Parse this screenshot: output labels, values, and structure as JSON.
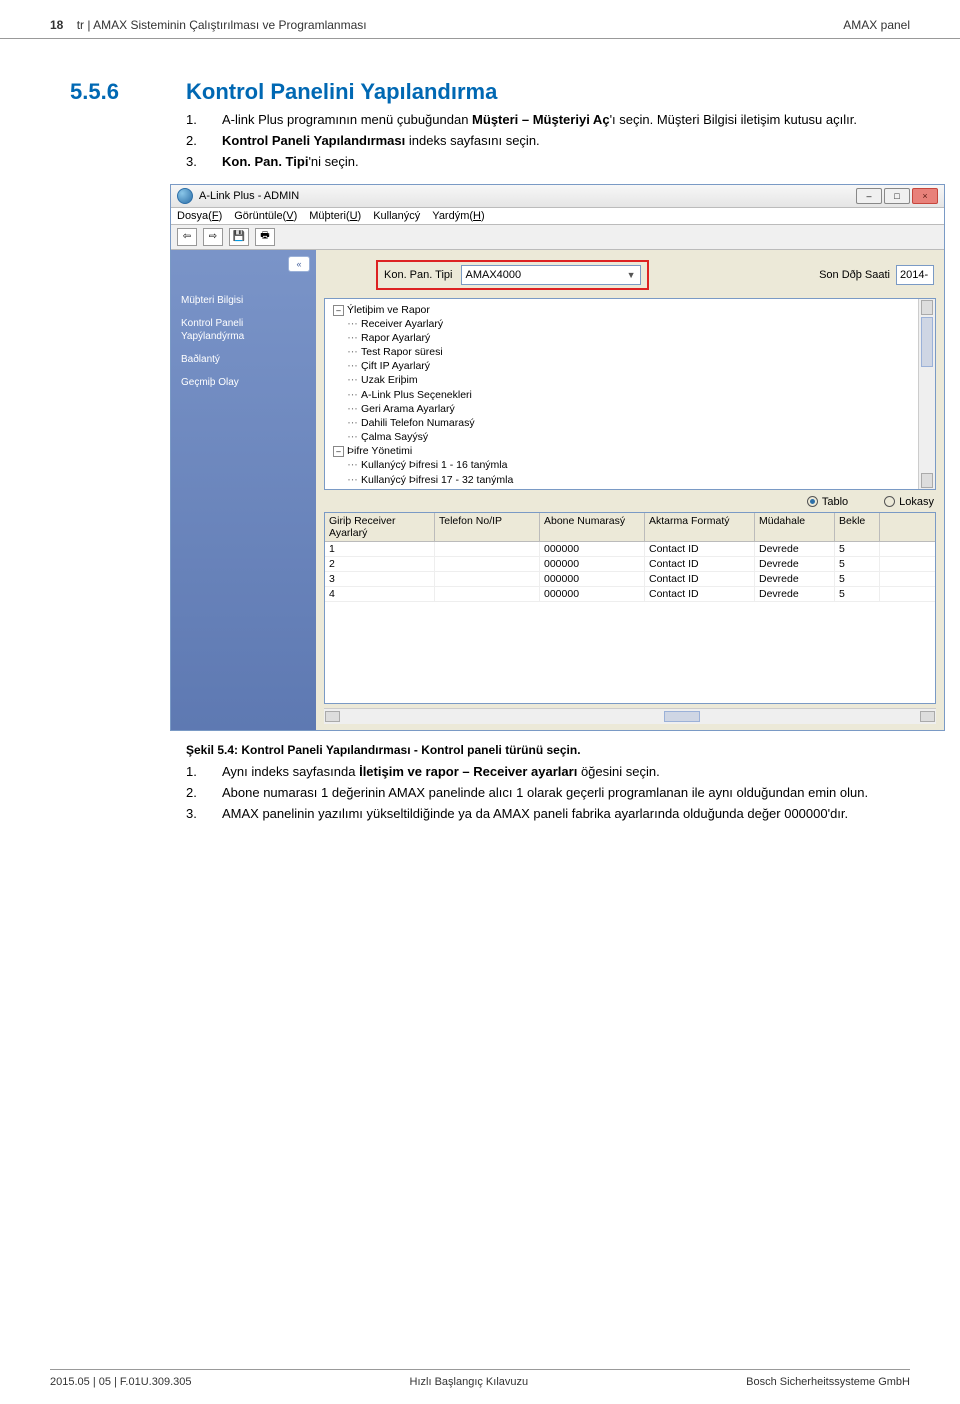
{
  "header": {
    "left_page": "18",
    "left_lang": "tr",
    "left_title": "AMAX Sisteminin Çalıştırılması ve Programlanması",
    "right": "AMAX panel"
  },
  "section": {
    "number": "5.5.6",
    "title": "Kontrol Panelini Yapılandırma"
  },
  "steps_before": [
    {
      "n": "1.",
      "prefix": "A-link Plus programının menü çubuğundan ",
      "bold": "Müşteri – Müşteriyi Aç",
      "suffix": "'ı seçin. Müşteri Bilgisi iletişim kutusu açılır."
    },
    {
      "n": "2.",
      "prefix": "",
      "bold": "Kontrol Paneli Yapılandırması",
      "suffix": " indeks sayfasını seçin."
    },
    {
      "n": "3.",
      "prefix": "",
      "bold": "Kon. Pan. Tipi",
      "suffix": "'ni seçin."
    }
  ],
  "figure_caption": "Şekil 5.4: Kontrol Paneli Yapılandırması - Kontrol paneli türünü seçin.",
  "steps_after": [
    {
      "n": "1.",
      "prefix": "Aynı indeks sayfasında ",
      "bold": "İletişim ve rapor – Receiver ayarları",
      "suffix": " öğesini seçin."
    },
    {
      "n": "2.",
      "prefix": "Abone numarası 1 değerinin AMAX panelinde alıcı 1 olarak geçerli programlanan ile aynı olduğundan emin olun.",
      "bold": "",
      "suffix": ""
    },
    {
      "n": "3.",
      "prefix": "AMAX panelinin yazılımı yükseltildiğinde ya da AMAX paneli fabrika ayarlarında olduğunda değer 000000'dır.",
      "bold": "",
      "suffix": ""
    }
  ],
  "app": {
    "title": "A-Link Plus - ADMIN",
    "menu": [
      "Dosya(F)",
      "Görüntüle(V)",
      "Müþteri(U)",
      "Kullanýcý",
      "Yardým(H)"
    ],
    "sidebar": [
      "Müþteri Bilgisi",
      "Kontrol Paneli Yapýlandýrma",
      "Baðlantý",
      "Geçmiþ Olay"
    ],
    "panel_label": "Kon. Pan. Tipi",
    "panel_value": "AMAX4000",
    "date_label": "Son Dðþ Saati",
    "date_value": "2014-",
    "tree_root": "Ýletiþim ve Rapor",
    "tree_items_a": [
      "Receiver Ayarlarý",
      "Rapor Ayarlarý",
      "Test Rapor süresi",
      "Çift IP Ayarlarý",
      "Uzak Eriþim",
      "A-Link Plus Seçenekleri",
      "Geri Arama Ayarlarý",
      "Dahili Telefon Numarasý",
      "Çalma Sayýsý"
    ],
    "tree_root2": "Þifre Yönetimi",
    "tree_items_b": [
      "Kullanýcý Þifresi 1 - 16 tanýmla",
      "Kullanýcý Þifresi 17 - 32 tanýmla"
    ],
    "radio": {
      "a": "Tablo",
      "b": "Lokasy"
    },
    "grid_headers": [
      "Giriþ Receiver Ayarlarý",
      "Telefon No/IP",
      "Abone Numarasý",
      "Aktarma Formatý",
      "Müdahale",
      "Bekle"
    ],
    "grid_rows": [
      [
        "1",
        "",
        "000000",
        "Contact ID",
        "Devrede",
        "5"
      ],
      [
        "2",
        "",
        "000000",
        "Contact ID",
        "Devrede",
        "5"
      ],
      [
        "3",
        "",
        "000000",
        "Contact ID",
        "Devrede",
        "5"
      ],
      [
        "4",
        "",
        "000000",
        "Contact ID",
        "Devrede",
        "5"
      ]
    ]
  },
  "footer": {
    "left": "2015.05 | 05 | F.01U.309.305",
    "center": "Hızlı Başlangıç Kılavuzu",
    "right": "Bosch Sicherheitssysteme GmbH"
  }
}
